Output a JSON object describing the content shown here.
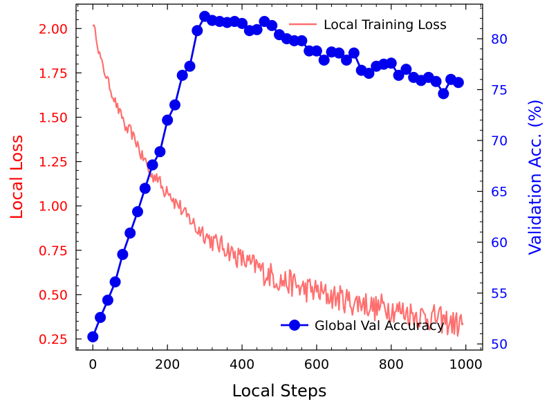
{
  "chart_data": {
    "type": "line",
    "dual_axis": true,
    "x_axis": {
      "label": "Local Steps",
      "range": [
        -45,
        1045
      ],
      "ticks": [
        0,
        200,
        400,
        600,
        800,
        1000
      ],
      "tick_labels": [
        "0",
        "200",
        "400",
        "600",
        "800",
        "1000"
      ]
    },
    "y_left": {
      "label": "Local Loss",
      "color": "#ff0000",
      "range": [
        0.1875,
        2.1375
      ],
      "ticks": [
        0.25,
        0.5,
        0.75,
        1.0,
        1.25,
        1.5,
        1.75,
        2.0
      ],
      "tick_labels": [
        "0.25",
        "0.50",
        "0.75",
        "1.00",
        "1.25",
        "1.50",
        "1.75",
        "2.00"
      ]
    },
    "y_right": {
      "label": "Validation Acc. (%)",
      "color": "#0000ff",
      "range": [
        49.4,
        83.4
      ],
      "ticks": [
        50,
        55,
        60,
        65,
        70,
        75,
        80
      ],
      "tick_labels": [
        "50",
        "55",
        "60",
        "65",
        "70",
        "75",
        "80"
      ]
    },
    "series": [
      {
        "name": "Local Training Loss",
        "axis": "left",
        "color": "#ff6f6f",
        "style": "line",
        "x": [
          0,
          5,
          10,
          15,
          20,
          30,
          40,
          50,
          60,
          70,
          80,
          90,
          100,
          110,
          120,
          130,
          140,
          150,
          160,
          170,
          180,
          190,
          200,
          210,
          220,
          230,
          240,
          250,
          260,
          270,
          280,
          290,
          300,
          320,
          340,
          360,
          380,
          400,
          420,
          440,
          460,
          480,
          500,
          520,
          540,
          560,
          580,
          600,
          620,
          640,
          660,
          680,
          700,
          720,
          740,
          760,
          780,
          800,
          820,
          840,
          860,
          880,
          900,
          920,
          940,
          960,
          980,
          995
        ],
        "values": [
          2.03,
          1.99,
          1.95,
          1.88,
          1.84,
          1.76,
          1.71,
          1.64,
          1.59,
          1.53,
          1.5,
          1.42,
          1.43,
          1.38,
          1.35,
          1.28,
          1.26,
          1.2,
          1.16,
          1.18,
          1.13,
          1.08,
          1.11,
          1.06,
          1.02,
          1.01,
          0.97,
          0.94,
          0.93,
          0.9,
          0.86,
          0.87,
          0.84,
          0.8,
          0.78,
          0.76,
          0.72,
          0.7,
          0.67,
          0.66,
          0.62,
          0.61,
          0.58,
          0.57,
          0.56,
          0.53,
          0.53,
          0.52,
          0.5,
          0.49,
          0.48,
          0.47,
          0.45,
          0.46,
          0.44,
          0.42,
          0.44,
          0.42,
          0.41,
          0.4,
          0.39,
          0.38,
          0.37,
          0.37,
          0.35,
          0.34,
          0.33,
          0.35
        ]
      },
      {
        "name": "Global Val Accuracy",
        "axis": "right",
        "color": "#0000ee",
        "style": "line-marker",
        "x": [
          0,
          20,
          40,
          60,
          80,
          100,
          120,
          140,
          160,
          180,
          200,
          220,
          240,
          260,
          280,
          300,
          320,
          340,
          360,
          380,
          400,
          420,
          440,
          460,
          480,
          500,
          520,
          540,
          560,
          580,
          600,
          620,
          640,
          660,
          680,
          700,
          720,
          740,
          760,
          780,
          800,
          820,
          840,
          860,
          880,
          900,
          920,
          940,
          960,
          980
        ],
        "values": [
          50.7,
          52.6,
          54.3,
          56.1,
          58.8,
          60.9,
          63.0,
          65.3,
          67.6,
          68.9,
          72.0,
          73.5,
          76.4,
          77.3,
          80.8,
          82.2,
          81.8,
          81.7,
          81.6,
          81.7,
          81.5,
          80.8,
          80.9,
          81.7,
          81.3,
          80.4,
          80.0,
          79.8,
          79.8,
          78.8,
          78.8,
          77.9,
          78.7,
          78.6,
          77.9,
          78.6,
          76.9,
          76.6,
          77.3,
          77.5,
          77.6,
          76.4,
          77.0,
          76.2,
          75.9,
          76.2,
          75.8,
          74.6,
          76.0,
          75.7
        ]
      }
    ],
    "legend": {
      "loss_entry": {
        "label": "Local Training Loss",
        "location": "top-right"
      },
      "acc_entry": {
        "label": "Global Val Accuracy",
        "location": "bottom-right"
      }
    }
  }
}
